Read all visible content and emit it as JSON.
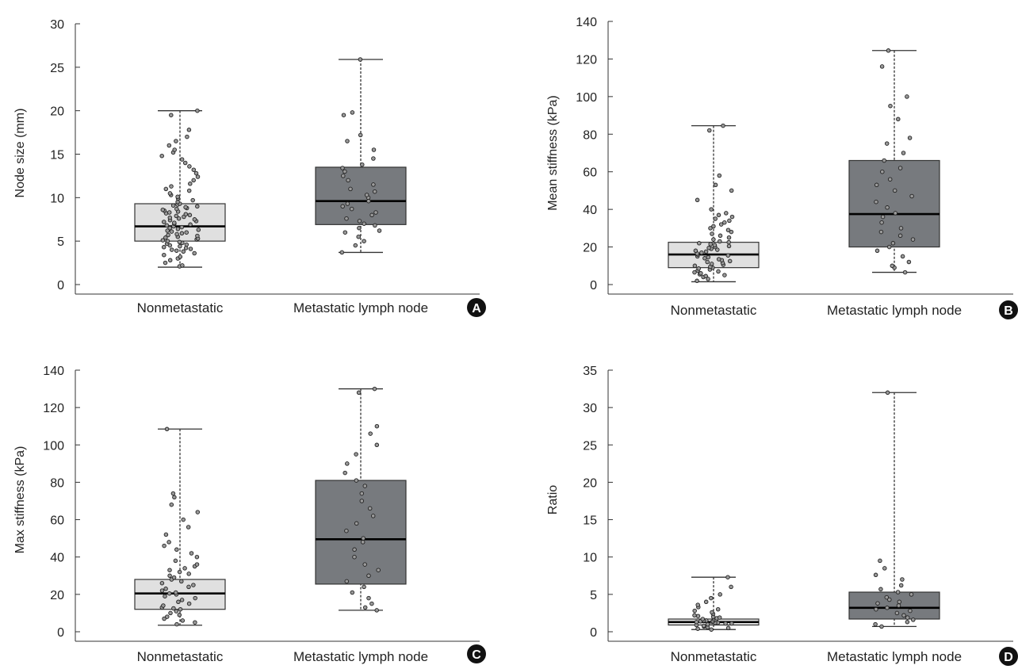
{
  "panels": [
    {
      "id": "A",
      "type": "box",
      "ylabel": "Node size (mm)",
      "ylim": [
        0,
        30
      ],
      "yticks": [
        0,
        5,
        10,
        15,
        20,
        25,
        30
      ],
      "categories": [
        "Nonmetastatic",
        "Metastatic lymph node"
      ],
      "boxes": [
        {
          "name": "Nonmetastatic",
          "whisker_low": 2.0,
          "q1": 5.0,
          "median": 6.7,
          "q3": 9.3,
          "whisker_high": 20.0,
          "fill": "#e0e0e0",
          "points": [
            2.1,
            2.2,
            2.5,
            2.8,
            3.0,
            3.2,
            3.4,
            3.6,
            3.8,
            3.9,
            4.0,
            4.1,
            4.2,
            4.3,
            4.4,
            4.5,
            4.6,
            4.7,
            4.8,
            4.9,
            5.0,
            5.1,
            5.2,
            5.3,
            5.4,
            5.5,
            5.6,
            5.7,
            5.8,
            5.9,
            6.0,
            6.1,
            6.2,
            6.3,
            6.4,
            6.5,
            6.6,
            6.7,
            6.8,
            6.9,
            7.0,
            7.1,
            7.2,
            7.3,
            7.4,
            7.5,
            7.6,
            7.7,
            7.8,
            7.9,
            8.0,
            8.1,
            8.2,
            8.3,
            8.4,
            8.5,
            8.6,
            8.7,
            8.8,
            8.9,
            9.0,
            9.1,
            9.2,
            9.3,
            9.5,
            9.7,
            9.9,
            10.1,
            10.3,
            10.5,
            10.8,
            11.0,
            11.3,
            11.6,
            12.0,
            12.4,
            12.8,
            13.2,
            13.6,
            14.0,
            14.4,
            14.8,
            15.2,
            15.5,
            16.0,
            16.5,
            17.0,
            17.8,
            19.5,
            20.0
          ]
        },
        {
          "name": "Metastatic lymph node",
          "whisker_low": 3.7,
          "q1": 6.9,
          "median": 9.6,
          "q3": 13.5,
          "whisker_high": 25.9,
          "fill": "#777a7e",
          "points": [
            3.7,
            4.5,
            5.0,
            5.5,
            6.0,
            6.2,
            6.5,
            6.8,
            7.0,
            7.3,
            7.6,
            8.0,
            8.3,
            8.7,
            9.0,
            9.3,
            9.6,
            10.0,
            10.3,
            10.7,
            11.0,
            11.5,
            12.0,
            12.5,
            13.0,
            13.4,
            13.8,
            14.5,
            15.5,
            16.5,
            17.2,
            19.5,
            19.8,
            25.9
          ]
        }
      ]
    },
    {
      "id": "B",
      "type": "box",
      "ylabel": "Mean stiffness (kPa)",
      "ylim": [
        0,
        140
      ],
      "yticks": [
        0,
        20,
        40,
        60,
        80,
        100,
        120,
        140
      ],
      "categories": [
        "Nonmetastatic",
        "Metastatic lymph node"
      ],
      "boxes": [
        {
          "name": "Nonmetastatic",
          "whisker_low": 1.5,
          "q1": 9.0,
          "median": 16.0,
          "q3": 22.5,
          "whisker_high": 84.5,
          "fill": "#e0e0e0",
          "points": [
            2,
            3,
            4,
            4.5,
            5,
            5.5,
            6,
            6.5,
            7,
            7.5,
            8,
            8.5,
            9,
            9.5,
            10,
            10.5,
            11,
            11.5,
            12,
            12.5,
            13,
            13.5,
            14,
            14.5,
            15,
            15.5,
            16,
            16.5,
            17,
            17.5,
            18,
            18.5,
            19,
            19.5,
            20,
            20.5,
            21,
            21.5,
            22,
            22.5,
            23,
            24,
            25,
            26,
            27,
            28,
            29,
            30,
            31,
            32,
            33,
            34,
            35,
            36,
            37,
            38,
            40,
            45,
            50,
            53,
            58,
            82,
            84.5
          ]
        },
        {
          "name": "Metastatic lymph node",
          "whisker_low": 6.5,
          "q1": 20.0,
          "median": 37.5,
          "q3": 66.0,
          "whisker_high": 124.5,
          "fill": "#777a7e",
          "points": [
            6.5,
            9,
            10,
            12,
            15,
            18,
            20,
            22,
            24,
            26,
            28,
            30,
            33,
            36,
            38,
            41,
            44,
            47,
            50,
            53,
            56,
            60,
            62,
            66,
            70,
            75,
            78,
            88,
            95,
            100,
            116,
            124.5
          ]
        }
      ]
    },
    {
      "id": "C",
      "type": "box",
      "ylabel": "Max stiffness (kPa)",
      "ylim": [
        0,
        140
      ],
      "yticks": [
        0,
        20,
        40,
        60,
        80,
        100,
        120,
        140
      ],
      "categories": [
        "Nonmetastatic",
        "Metastatic lymph node"
      ],
      "boxes": [
        {
          "name": "Nonmetastatic",
          "whisker_low": 3.5,
          "q1": 12.0,
          "median": 20.5,
          "q3": 28.0,
          "whisker_high": 108.5,
          "fill": "#e0e0e0",
          "points": [
            4,
            5,
            6,
            7,
            8,
            9,
            10,
            11,
            12,
            12.5,
            13,
            14,
            15,
            16,
            17,
            18,
            19,
            20,
            20.5,
            21,
            22,
            23,
            24,
            25,
            26,
            27,
            28,
            29,
            30,
            31,
            32,
            33,
            34,
            35,
            36,
            38,
            40,
            42,
            44,
            46,
            48,
            52,
            56,
            60,
            64,
            68,
            72,
            74,
            108.5
          ]
        },
        {
          "name": "Metastatic lymph node",
          "whisker_low": 11.5,
          "q1": 25.5,
          "median": 49.5,
          "q3": 81.0,
          "whisker_high": 130.0,
          "fill": "#777a7e",
          "points": [
            11.5,
            13,
            15,
            18,
            21,
            24,
            27,
            30,
            33,
            36,
            40,
            44,
            48,
            50,
            54,
            58,
            62,
            66,
            70,
            74,
            78,
            81,
            85,
            90,
            95,
            100,
            106,
            110,
            128,
            130
          ]
        }
      ]
    },
    {
      "id": "D",
      "type": "box",
      "ylabel": "Ratio",
      "ylim": [
        0,
        35
      ],
      "yticks": [
        0,
        5,
        10,
        15,
        20,
        25,
        30,
        35
      ],
      "categories": [
        "Nonmetastatic",
        "Metastatic lymph node"
      ],
      "boxes": [
        {
          "name": "Nonmetastatic",
          "whisker_low": 0.3,
          "q1": 0.9,
          "median": 1.3,
          "q3": 1.7,
          "whisker_high": 7.3,
          "fill": "#e0e0e0",
          "points": [
            0.3,
            0.4,
            0.5,
            0.6,
            0.7,
            0.8,
            0.9,
            1.0,
            1.0,
            1.1,
            1.1,
            1.2,
            1.2,
            1.3,
            1.3,
            1.4,
            1.4,
            1.5,
            1.5,
            1.6,
            1.6,
            1.7,
            1.8,
            1.9,
            2.0,
            2.1,
            2.2,
            2.4,
            2.6,
            2.8,
            3.0,
            3.3,
            3.6,
            4.0,
            4.5,
            5.0,
            6.0,
            7.3
          ]
        },
        {
          "name": "Metastatic lymph node",
          "whisker_low": 0.7,
          "q1": 1.7,
          "median": 3.2,
          "q3": 5.3,
          "whisker_high": 32.0,
          "fill": "#777a7e",
          "points": [
            0.7,
            1.0,
            1.3,
            1.6,
            1.9,
            2.2,
            2.5,
            2.8,
            3.0,
            3.2,
            3.5,
            3.8,
            4.0,
            4.3,
            4.6,
            5.0,
            5.3,
            5.7,
            6.2,
            7.0,
            7.6,
            8.5,
            9.5,
            32.0
          ]
        }
      ]
    }
  ],
  "chart_data": [
    {
      "type": "box",
      "panel": "A",
      "ylabel": "Node size (mm)",
      "ylim": [
        0,
        30
      ],
      "categories": [
        "Nonmetastatic",
        "Metastatic lymph node"
      ],
      "series": [
        {
          "name": "Nonmetastatic",
          "values": {
            "min": 2.0,
            "q1": 5.0,
            "median": 6.7,
            "q3": 9.3,
            "max": 20.0
          }
        },
        {
          "name": "Metastatic lymph node",
          "values": {
            "min": 3.7,
            "q1": 6.9,
            "median": 9.6,
            "q3": 13.5,
            "max": 25.9
          }
        }
      ]
    },
    {
      "type": "box",
      "panel": "B",
      "ylabel": "Mean stiffness (kPa)",
      "ylim": [
        0,
        140
      ],
      "categories": [
        "Nonmetastatic",
        "Metastatic lymph node"
      ],
      "series": [
        {
          "name": "Nonmetastatic",
          "values": {
            "min": 1.5,
            "q1": 9.0,
            "median": 16.0,
            "q3": 22.5,
            "max": 84.5
          }
        },
        {
          "name": "Metastatic lymph node",
          "values": {
            "min": 6.5,
            "q1": 20.0,
            "median": 37.5,
            "q3": 66.0,
            "max": 124.5
          }
        }
      ]
    },
    {
      "type": "box",
      "panel": "C",
      "ylabel": "Max stiffness (kPa)",
      "ylim": [
        0,
        140
      ],
      "categories": [
        "Nonmetastatic",
        "Metastatic lymph node"
      ],
      "series": [
        {
          "name": "Nonmetastatic",
          "values": {
            "min": 3.5,
            "q1": 12.0,
            "median": 20.5,
            "q3": 28.0,
            "max": 108.5
          }
        },
        {
          "name": "Metastatic lymph node",
          "values": {
            "min": 11.5,
            "q1": 25.5,
            "median": 49.5,
            "q3": 81.0,
            "max": 130.0
          }
        }
      ]
    },
    {
      "type": "box",
      "panel": "D",
      "ylabel": "Ratio",
      "ylim": [
        0,
        35
      ],
      "categories": [
        "Nonmetastatic",
        "Metastatic lymph node"
      ],
      "series": [
        {
          "name": "Nonmetastatic",
          "values": {
            "min": 0.3,
            "q1": 0.9,
            "median": 1.3,
            "q3": 1.7,
            "max": 7.3
          }
        },
        {
          "name": "Metastatic lymph node",
          "values": {
            "min": 0.7,
            "q1": 1.7,
            "median": 3.2,
            "q3": 5.3,
            "max": 32.0
          }
        }
      ]
    }
  ]
}
